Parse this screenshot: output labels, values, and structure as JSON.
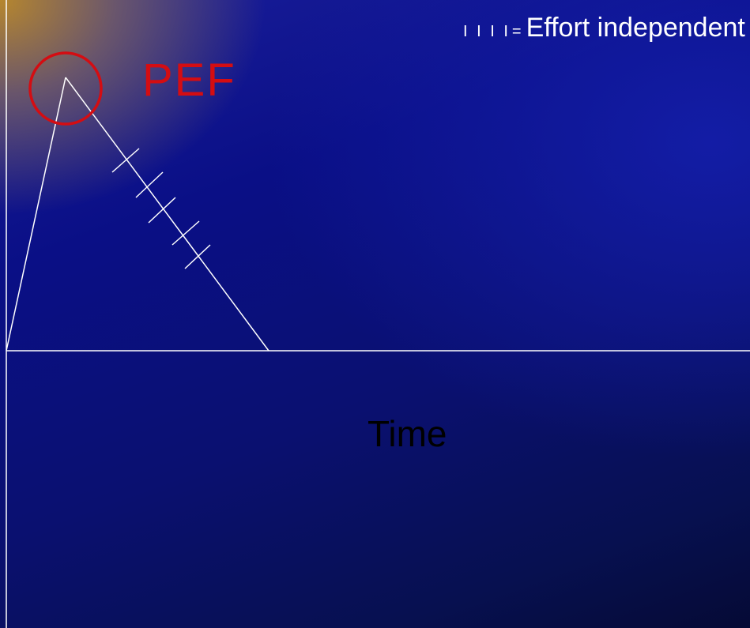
{
  "diagram": {
    "legend": {
      "marks": "I I I I",
      "equals": "=",
      "text": "Effort independent"
    },
    "peak_label": "PEF",
    "x_axis_label": "Time",
    "colors": {
      "lines": "#ffffff",
      "peak_circle": "#d40d12",
      "peak_label": "#d40d12",
      "time_label": "#000000"
    }
  }
}
